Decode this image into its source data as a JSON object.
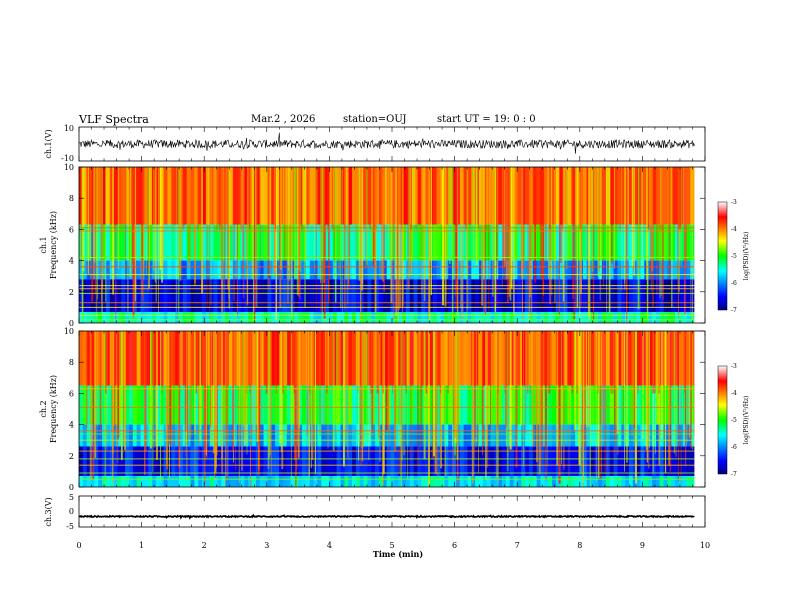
{
  "header": {
    "title": "VLF Spectra",
    "date": "Mar.2 , 2026",
    "station": "station=OUJ",
    "start": "start UT = 19: 0 : 0"
  },
  "chart_data": [
    {
      "type": "line",
      "ylabel": "ch.1(V)",
      "ylim": [
        -10,
        10
      ],
      "yticks": [
        "10",
        "-10"
      ],
      "description_values": {
        "baseline": 0,
        "noise_amplitude": 2.5
      },
      "xlim": [
        0,
        10
      ]
    },
    {
      "type": "heatmap",
      "ylabel_line1": "ch.1",
      "ylabel_line2": "Frequency (kHz)",
      "ylim": [
        0,
        10
      ],
      "yticks": [
        "0",
        "2",
        "4",
        "6",
        "8",
        "10"
      ],
      "xlim": [
        0,
        10
      ],
      "data_end_min": 9.83,
      "colorbar": {
        "label": "log(PSD)(V²/Hz)",
        "range": [
          -7,
          -3
        ],
        "ticks": [
          "-3",
          "-4",
          "-5",
          "-6",
          "-7"
        ]
      },
      "bands_khz": [
        {
          "from": 6.3,
          "to": 10,
          "level": -3.9
        },
        {
          "from": 4.0,
          "to": 6.3,
          "level": -5.2
        },
        {
          "from": 2.8,
          "to": 4.0,
          "level": -5.9
        },
        {
          "from": 0.7,
          "to": 2.8,
          "level": -6.6
        },
        {
          "from": 0,
          "to": 0.7,
          "level": -5.4
        }
      ],
      "lines_khz": [
        0.2,
        0.5,
        1.0,
        1.3,
        1.9,
        2.2,
        2.4,
        3.1,
        3.6,
        4.2,
        5.9,
        6.1
      ]
    },
    {
      "type": "heatmap",
      "ylabel_line1": "ch.2",
      "ylabel_line2": "Frequency (kHz)",
      "ylim": [
        0,
        10
      ],
      "yticks": [
        "0",
        "2",
        "4",
        "6",
        "8",
        "10"
      ],
      "xlim": [
        0,
        10
      ],
      "data_end_min": 9.83,
      "colorbar": {
        "label": "log(PSD)(V²/Hz)",
        "range": [
          -7,
          -3
        ],
        "ticks": [
          "-3",
          "-4",
          "-5",
          "-6",
          "-7"
        ]
      },
      "bands_khz": [
        {
          "from": 6.5,
          "to": 10,
          "level": -3.8
        },
        {
          "from": 4.0,
          "to": 6.5,
          "level": -5.1
        },
        {
          "from": 2.6,
          "to": 4.0,
          "level": -5.8
        },
        {
          "from": 0.7,
          "to": 2.6,
          "level": -6.5
        },
        {
          "from": 0,
          "to": 0.7,
          "level": -5.6
        }
      ],
      "lines_khz": [
        0.5,
        0.9,
        1.4,
        1.8,
        2.3,
        3.0,
        3.4,
        3.6,
        5.1,
        6.3
      ]
    },
    {
      "type": "line",
      "ylabel": "ch.3(V)",
      "ylim": [
        -5,
        5
      ],
      "yticks": [
        "5",
        "0",
        "-5"
      ],
      "description_values": {
        "baseline": -1.6,
        "noise_amplitude": 0.2
      },
      "xlim": [
        0,
        10
      ],
      "xlabel": "Time (min)",
      "xticks": [
        "0",
        "1",
        "2",
        "3",
        "4",
        "5",
        "6",
        "7",
        "8",
        "9",
        "10"
      ]
    }
  ]
}
